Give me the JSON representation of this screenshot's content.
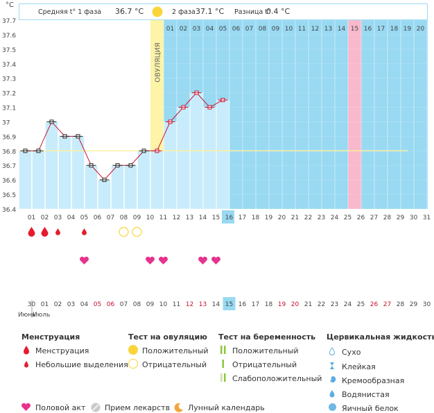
{
  "chart_data": {
    "type": "line",
    "title": "",
    "ylabel": "°C",
    "ylim": [
      36.4,
      37.7
    ],
    "yticks": [
      "36.4",
      "36.5",
      "36.6",
      "36.7",
      "36.8",
      "36.9",
      "37",
      "37.1",
      "37.2",
      "37.3",
      "37.4",
      "37.5",
      "37.6",
      "37.7"
    ],
    "cycle_days": [
      "01",
      "02",
      "03",
      "04",
      "05",
      "06",
      "07",
      "08",
      "09",
      "10",
      "11",
      "12",
      "13",
      "14",
      "15",
      "16",
      "17",
      "18",
      "19",
      "20",
      "21",
      "22",
      "23",
      "24",
      "25",
      "26",
      "27",
      "28",
      "29",
      "30",
      "31"
    ],
    "phase_days": [
      "01",
      "02",
      "03",
      "04",
      "05",
      "06",
      "07",
      "08",
      "09",
      "10",
      "11",
      "12",
      "13",
      "14",
      "15",
      "16",
      "17",
      "18",
      "19",
      "20"
    ],
    "calendar_days": [
      "30",
      "01",
      "02",
      "03",
      "04",
      "05",
      "06",
      "07",
      "08",
      "09",
      "10",
      "11",
      "12",
      "13",
      "14",
      "15",
      "16",
      "17",
      "18",
      "19",
      "20",
      "21",
      "22",
      "23",
      "24",
      "25",
      "26",
      "27",
      "28",
      "29",
      "30"
    ],
    "calendar_red": [
      "05",
      "06",
      "12",
      "13",
      "19",
      "20",
      "26",
      "27"
    ],
    "today_cycle_day": "16",
    "today_calendar_day": "15",
    "pink_phase_day": "15",
    "series": [
      {
        "values": [
          36.8,
          36.8,
          37.0,
          36.9,
          36.9,
          36.7,
          36.6,
          36.7,
          36.7,
          36.8,
          36.8,
          37.0,
          37.1,
          37.2,
          37.1,
          37.15
        ]
      }
    ],
    "phase1_days": 10,
    "ovulation_day_index": 10,
    "coverline": 36.8,
    "header": {
      "phase1_label": "Средняя t° 1 фаза",
      "phase1_value": "36.7 °C",
      "phase2_label": "2 фаза",
      "phase2_value": "37.1 °C",
      "diff_label": "Разница t°",
      "diff_value": "0.4 °C"
    },
    "ovulation_label": "ОВУЛЯЦИЯ",
    "month_label_1": "Июнь",
    "month_label_2": "Июль",
    "symbols": {
      "menstruation_days": [
        1,
        2,
        3,
        5
      ],
      "menstruation_size": [
        "big",
        "big",
        "small",
        "small"
      ],
      "ovulation_test_negative_days": [
        8,
        9
      ],
      "intercourse_days": [
        5,
        10,
        11,
        14,
        15
      ]
    }
  },
  "legend": {
    "menstruation": {
      "title": "Менструация",
      "items": [
        "Менструация",
        "Небольшие выделения"
      ]
    },
    "ovulation_test": {
      "title": "Тест на овуляцию",
      "items": [
        "Положительный",
        "Отрицательный"
      ]
    },
    "pregnancy_test": {
      "title": "Тест на беременность",
      "items": [
        "Положительный",
        "Отрицательный",
        "Слабоположительный"
      ]
    },
    "cervical": {
      "title": "Цервикальная жидкость",
      "items": [
        "Сухо",
        "Клейкая",
        "Кремообразная",
        "Водянистая",
        "Яичный белок"
      ]
    },
    "bottom": [
      "Половой акт",
      "Прием лекарств",
      "Лунный календарь"
    ]
  },
  "colors": {
    "phase1_bg": "#ffffff",
    "phase2_bg": "#99d9f2",
    "bar_fill": "#c8ecfb",
    "ovulation": "#fdf4a8",
    "pink": "#f9b8cc",
    "line": "#c8102e",
    "heart": "#e6338d",
    "drop": "#e51c2e"
  }
}
